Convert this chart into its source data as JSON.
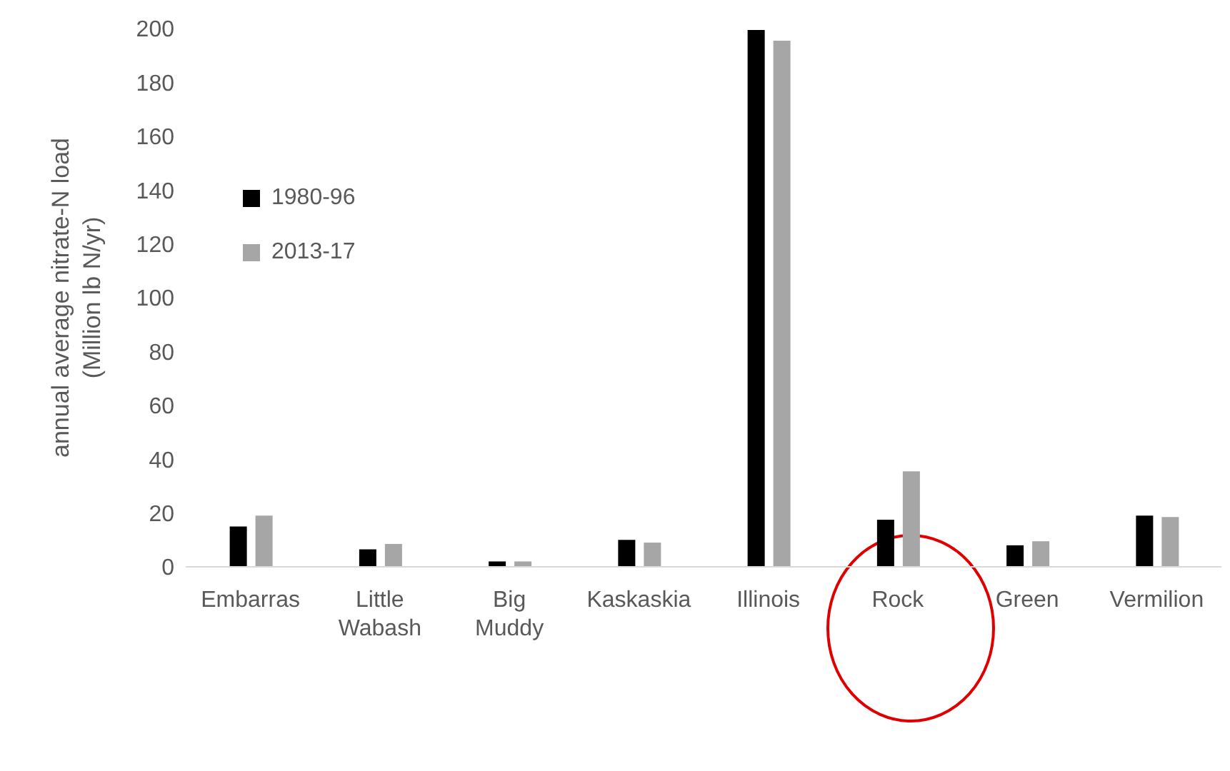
{
  "chart_data": {
    "type": "bar",
    "ylabel": "annual average nitrate-N load\n(Million lb N/yr)",
    "categories": [
      "Embarras",
      "Little Wabash",
      "Big Muddy",
      "Kaskaskia",
      "Illinois",
      "Rock",
      "Green",
      "Vermilion"
    ],
    "series": [
      {
        "name": "1980-96",
        "color": "#000000",
        "values": [
          15,
          6.5,
          2,
          10,
          199.5,
          17.5,
          8,
          19
        ]
      },
      {
        "name": "2013-17",
        "color": "#a6a6a6",
        "values": [
          19,
          8.5,
          2,
          9,
          195.5,
          35.5,
          9.5,
          18.5
        ]
      }
    ],
    "ylim": [
      0,
      200
    ],
    "yticks": [
      0,
      20,
      40,
      60,
      80,
      100,
      120,
      140,
      160,
      180,
      200
    ],
    "grid": false,
    "legend": "top left"
  }
}
